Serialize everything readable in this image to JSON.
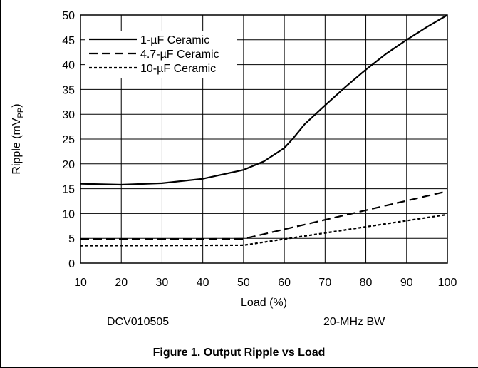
{
  "chart_data": {
    "type": "line",
    "title": "",
    "xlabel": "Load (%)",
    "ylabel": {
      "main": "Ripple (mV",
      "sub": "PP",
      "close": ")"
    },
    "xlim": [
      10,
      100
    ],
    "ylim": [
      0,
      50
    ],
    "xticks": [
      10,
      20,
      30,
      40,
      50,
      60,
      70,
      80,
      90,
      100
    ],
    "yticks": [
      0,
      5,
      10,
      15,
      20,
      25,
      30,
      35,
      40,
      45,
      50
    ],
    "grid": true,
    "legend": "top-left",
    "series": [
      {
        "name": "1-µF Ceramic",
        "style": "solid",
        "x": [
          10,
          20,
          30,
          40,
          50,
          55,
          60,
          62,
          65,
          70,
          75,
          80,
          85,
          90,
          95,
          100
        ],
        "y": [
          16,
          15.8,
          16.1,
          17,
          18.8,
          20.5,
          23.2,
          25,
          28,
          31.8,
          35.5,
          39,
          42.2,
          45,
          47.6,
          50
        ]
      },
      {
        "name": "4.7-µF Ceramic",
        "style": "dashed",
        "x": [
          10,
          50,
          100
        ],
        "y": [
          4.8,
          4.9,
          14.5
        ]
      },
      {
        "name": "10-µF Ceramic",
        "style": "dotted",
        "x": [
          10,
          50,
          100
        ],
        "y": [
          3.5,
          3.6,
          9.8
        ]
      }
    ]
  },
  "annotations": {
    "left": "DCV010505",
    "right": "20-MHz BW"
  },
  "caption": "Figure 1. Output Ripple vs Load"
}
